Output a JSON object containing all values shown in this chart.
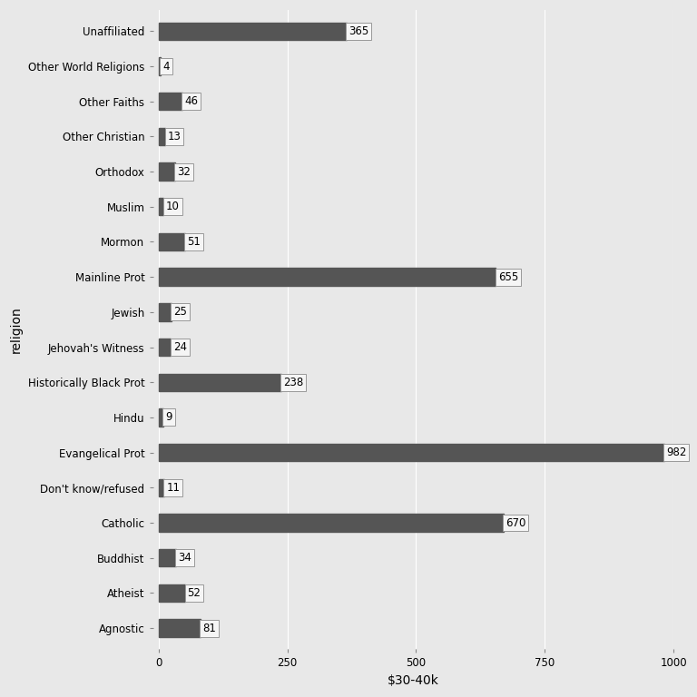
{
  "categories": [
    "Unaffiliated",
    "Other World Religions",
    "Other Faiths",
    "Other Christian",
    "Orthodox",
    "Muslim",
    "Mormon",
    "Mainline Prot",
    "Jewish",
    "Jehovah's Witness",
    "Historically Black Prot",
    "Hindu",
    "Evangelical Prot",
    "Don't know/refused",
    "Catholic",
    "Buddhist",
    "Atheist",
    "Agnostic"
  ],
  "values": [
    365,
    4,
    46,
    13,
    32,
    10,
    51,
    655,
    25,
    24,
    238,
    9,
    982,
    11,
    670,
    34,
    52,
    81
  ],
  "bar_color": "#555555",
  "label_box_facecolor": "#f5f5f5",
  "label_box_edgecolor": "#999999",
  "background_color": "#e8e8e8",
  "panel_color": "#e8e8e8",
  "grid_color": "#ffffff",
  "xlabel": "$30-40k",
  "ylabel": "religion",
  "xlim": [
    -10,
    1000
  ],
  "xticks": [
    0,
    250,
    500,
    750,
    1000
  ],
  "label_fontsize": 8.5,
  "axis_label_fontsize": 10,
  "tick_fontsize": 8.5,
  "bar_height": 0.5
}
